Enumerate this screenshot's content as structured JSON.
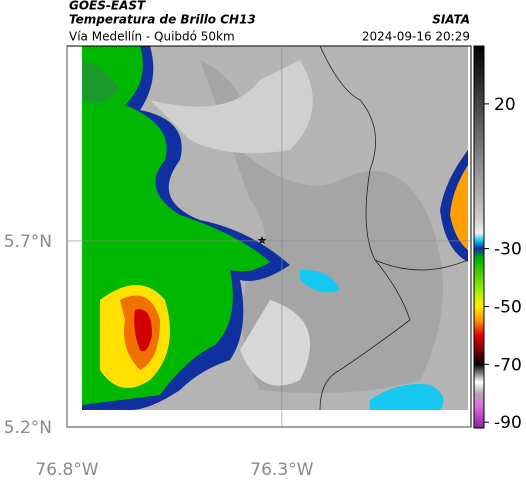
{
  "header": {
    "title": "GOES-EAST",
    "subtitle": "Temperatura de Brillo CH13",
    "route": "Vía Medellín - Quibdó 50km",
    "source": "SIATA",
    "datetime": "2024-09-16 20:29"
  },
  "map": {
    "lonlim": [
      -76.8,
      -75.86
    ],
    "latlim": [
      5.2,
      6.224
    ],
    "xticks": [
      {
        "value": -76.8,
        "label": "76.8°W"
      },
      {
        "value": -76.3,
        "label": "76.3°W"
      }
    ],
    "yticks": [
      {
        "value": 5.7,
        "label": "5.7°N"
      },
      {
        "value": 5.2,
        "label": "5.2°N"
      }
    ],
    "grid": true
  },
  "colorbar": {
    "lim": [
      40,
      -92
    ],
    "ticks": [
      20,
      -30,
      -50,
      -70,
      -90
    ]
  }
}
